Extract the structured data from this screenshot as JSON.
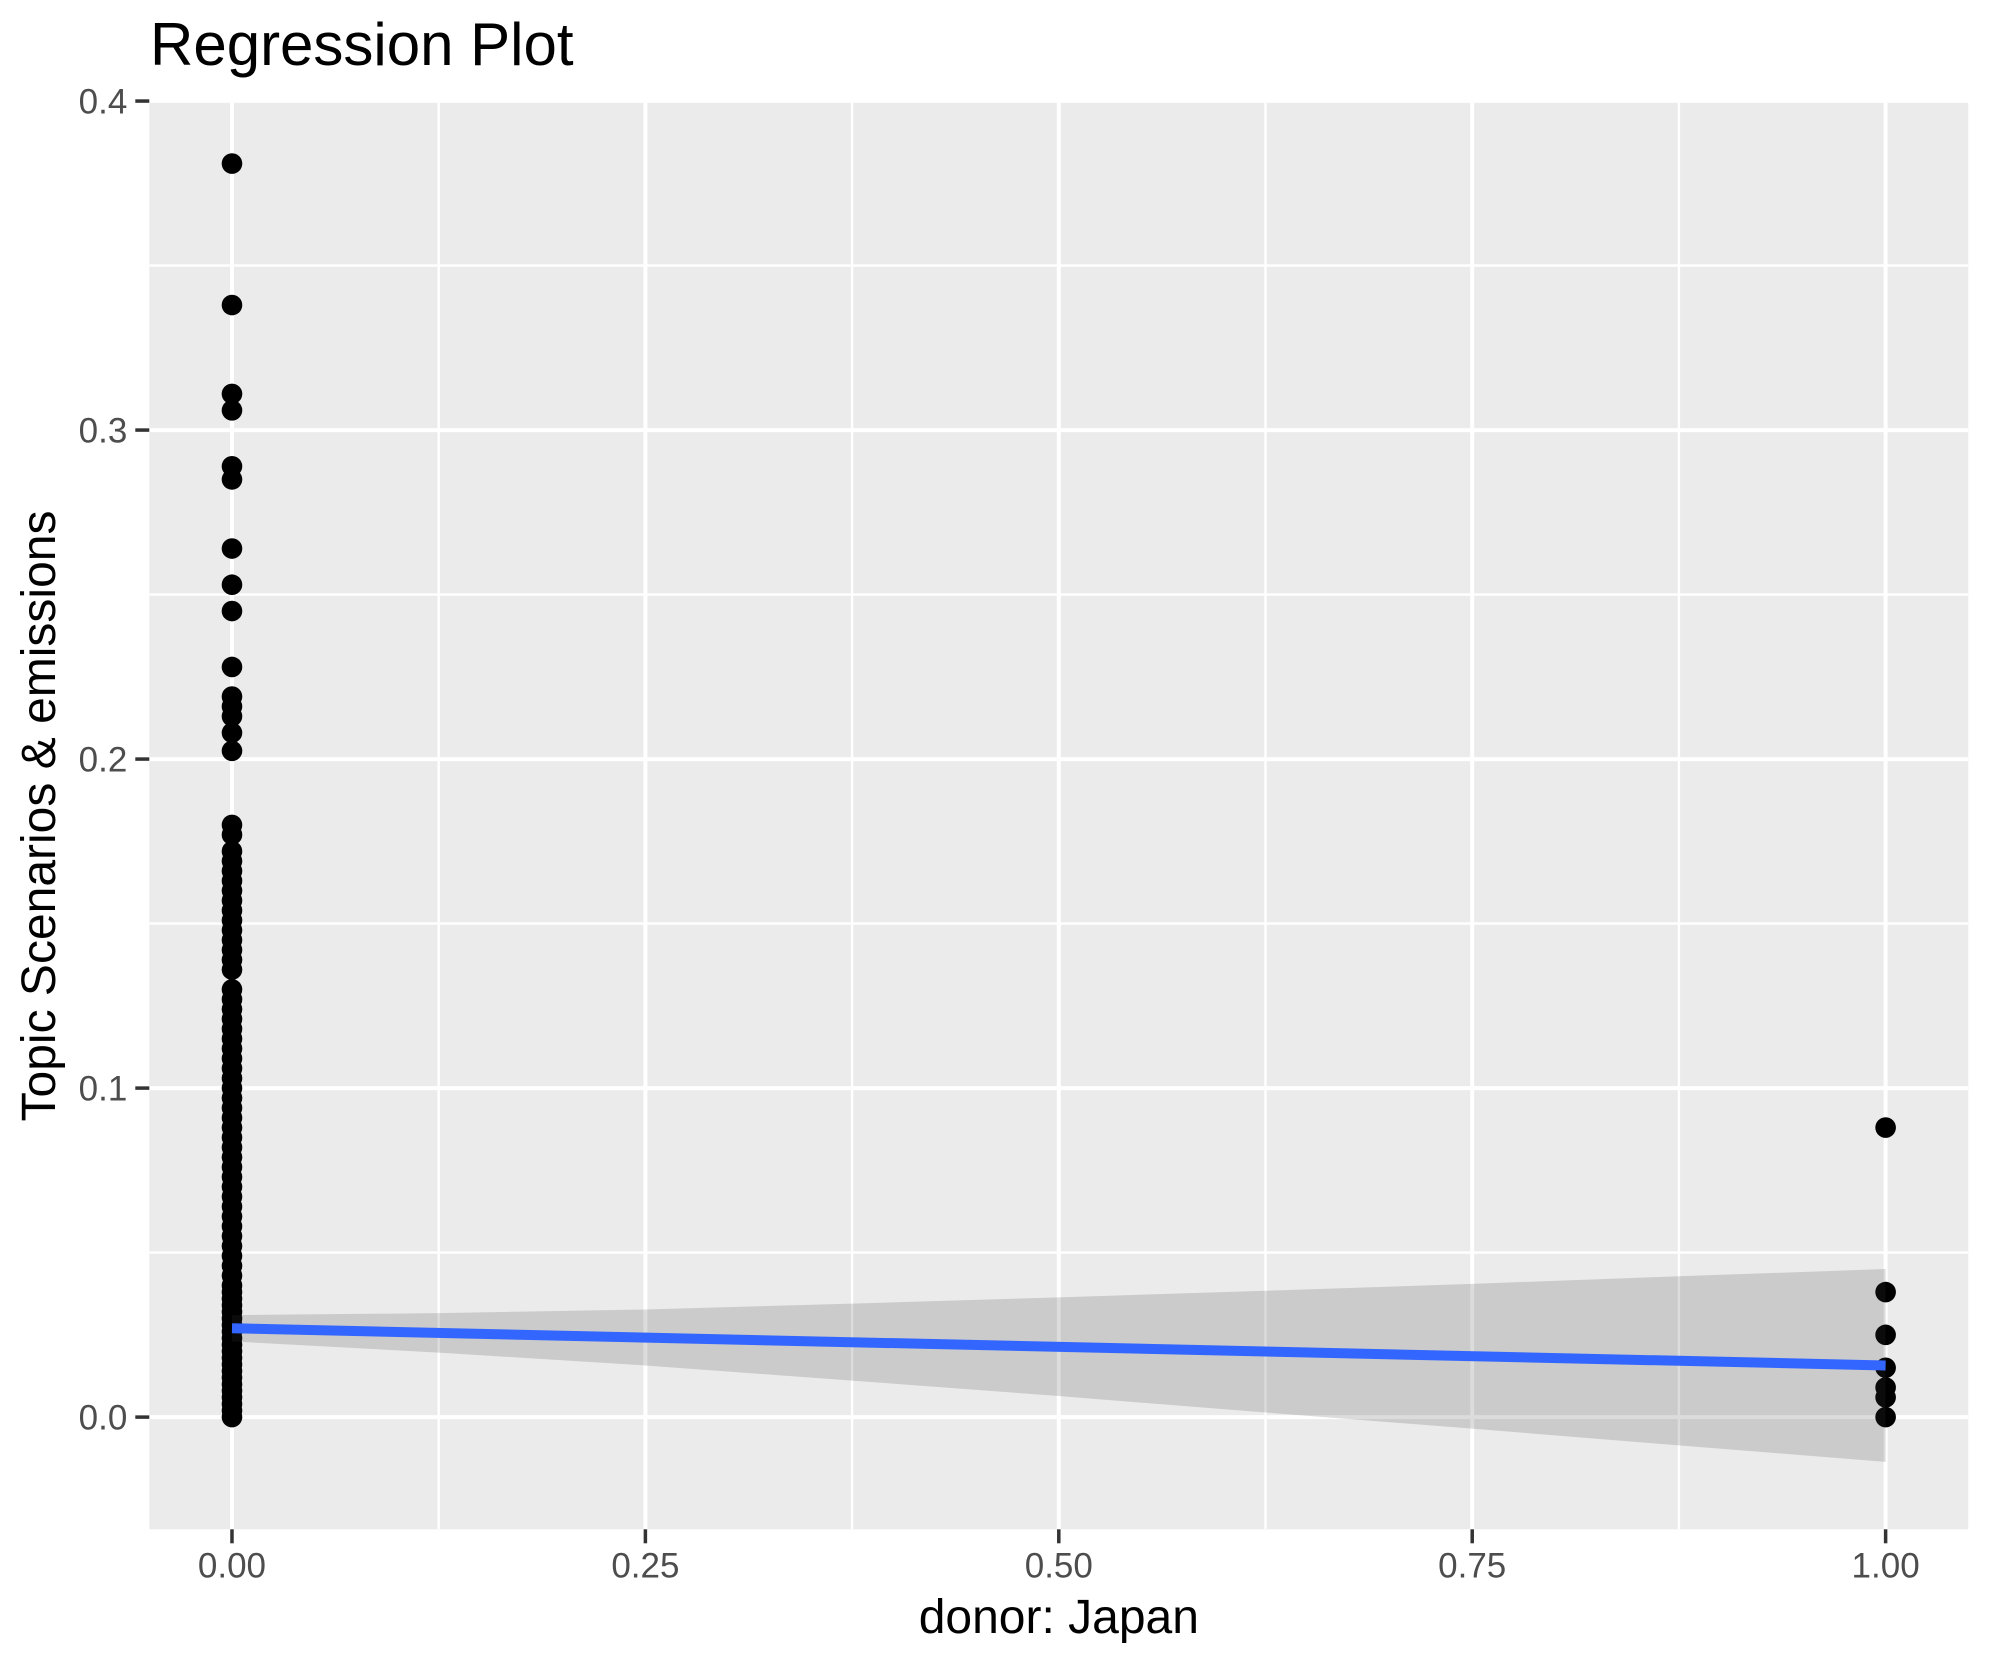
{
  "title": "Regression Plot",
  "chart_data": {
    "type": "scatter",
    "title": "Regression Plot",
    "xlabel": "donor: Japan",
    "ylabel": "Topic Scenarios & emissions",
    "xlim": [
      -0.05,
      1.05
    ],
    "ylim": [
      -0.0341,
      0.3995
    ],
    "grid": true,
    "legend": false,
    "x_ticks": [
      0.0,
      0.25,
      0.5,
      0.75,
      1.0
    ],
    "x_tick_labels": [
      "0.00",
      "0.25",
      "0.50",
      "0.75",
      "1.00"
    ],
    "x_minor_ticks": [
      0.125,
      0.375,
      0.625,
      0.875
    ],
    "y_ticks": [
      0.0,
      0.1,
      0.2,
      0.3,
      0.4
    ],
    "y_tick_labels": [
      "0.0",
      "0.1",
      "0.2",
      "0.3",
      "0.4"
    ],
    "y_minor_ticks": [
      0.05,
      0.15,
      0.25,
      0.35
    ],
    "series": [
      {
        "name": "observations-at-x0",
        "x": 0.0,
        "y": [
          0.381,
          0.338,
          0.311,
          0.306,
          0.289,
          0.285,
          0.264,
          0.253,
          0.245,
          0.228,
          0.219,
          0.216,
          0.213,
          0.208,
          0.2025,
          0.18,
          0.177,
          0.172,
          0.169,
          0.166,
          0.163,
          0.16,
          0.157,
          0.154,
          0.151,
          0.148,
          0.145,
          0.142,
          0.139,
          0.136,
          0.13,
          0.127,
          0.124,
          0.121,
          0.118,
          0.115,
          0.112,
          0.109,
          0.106,
          0.103,
          0.1,
          0.097,
          0.094,
          0.091,
          0.088,
          0.085,
          0.082,
          0.079,
          0.076,
          0.073,
          0.07,
          0.067,
          0.064,
          0.061,
          0.058,
          0.055,
          0.052,
          0.049,
          0.046,
          0.043,
          0.04,
          0.038,
          0.036,
          0.034,
          0.032,
          0.03,
          0.028,
          0.026,
          0.024,
          0.022,
          0.02,
          0.018,
          0.016,
          0.014,
          0.012,
          0.01,
          0.008,
          0.006,
          0.004,
          0.002,
          0.0
        ]
      },
      {
        "name": "observations-at-x1",
        "x": 1.0,
        "y": [
          0.088,
          0.038,
          0.025,
          0.015,
          0.009,
          0.006,
          0.0
        ]
      }
    ],
    "regression_line": {
      "x0": 0.0,
      "y0": 0.027,
      "x1": 1.0,
      "y1": 0.0157
    },
    "confidence_band": {
      "x": [
        0.0,
        0.125,
        0.25,
        0.375,
        0.5,
        0.625,
        0.75,
        0.875,
        1.0
      ],
      "upper": [
        0.031,
        0.0316,
        0.0327,
        0.0345,
        0.0364,
        0.0384,
        0.0405,
        0.0428,
        0.045
      ],
      "lower": [
        0.023,
        0.0196,
        0.0157,
        0.0111,
        0.0064,
        0.0014,
        -0.0035,
        -0.0086,
        -0.0136
      ]
    },
    "colors": {
      "panel_background": "#EBEBEB",
      "grid_line": "#FFFFFF",
      "point": "#000000",
      "regression_line": "#3366FF",
      "confidence_band": "rgba(60,60,60,0.18)",
      "tick_label": "#4D4D4D",
      "tick_mark": "#333333",
      "title_text": "#000000"
    }
  }
}
